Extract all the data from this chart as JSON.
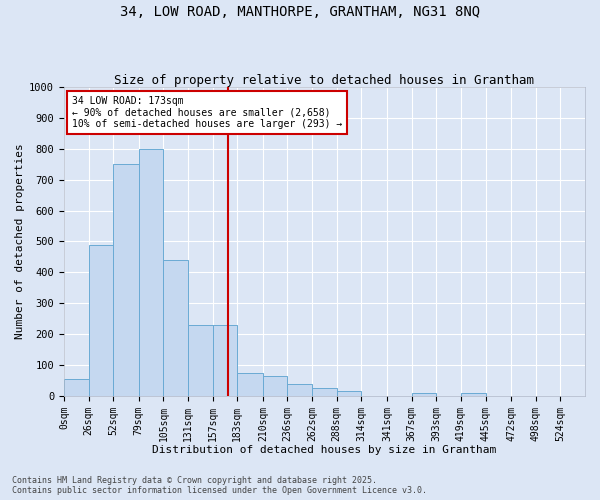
{
  "title1": "34, LOW ROAD, MANTHORPE, GRANTHAM, NG31 8NQ",
  "title2": "Size of property relative to detached houses in Grantham",
  "xlabel": "Distribution of detached houses by size in Grantham",
  "ylabel": "Number of detached properties",
  "bin_labels": [
    "0sqm",
    "26sqm",
    "52sqm",
    "79sqm",
    "105sqm",
    "131sqm",
    "157sqm",
    "183sqm",
    "210sqm",
    "236sqm",
    "262sqm",
    "288sqm",
    "314sqm",
    "341sqm",
    "367sqm",
    "393sqm",
    "419sqm",
    "445sqm",
    "472sqm",
    "498sqm",
    "524sqm"
  ],
  "bar_values": [
    55,
    490,
    750,
    800,
    440,
    230,
    230,
    75,
    65,
    40,
    25,
    15,
    0,
    0,
    10,
    0,
    8,
    0,
    0,
    0,
    0
  ],
  "bin_edges": [
    0,
    26,
    52,
    79,
    105,
    131,
    157,
    183,
    210,
    236,
    262,
    288,
    314,
    341,
    367,
    393,
    419,
    445,
    472,
    498,
    524
  ],
  "bar_color": "#c5d8f0",
  "bar_edge_color": "#6aaad4",
  "vline_x": 173,
  "vline_color": "#cc0000",
  "annotation_box_text": "34 LOW ROAD: 173sqm\n← 90% of detached houses are smaller (2,658)\n10% of semi-detached houses are larger (293) →",
  "ylim": [
    0,
    1000
  ],
  "yticks": [
    0,
    100,
    200,
    300,
    400,
    500,
    600,
    700,
    800,
    900,
    1000
  ],
  "background_color": "#dce6f5",
  "plot_bg_color": "#dce6f5",
  "grid_color": "#ffffff",
  "footer1": "Contains HM Land Registry data © Crown copyright and database right 2025.",
  "footer2": "Contains public sector information licensed under the Open Government Licence v3.0.",
  "title_fontsize": 10,
  "subtitle_fontsize": 9,
  "axis_label_fontsize": 8,
  "tick_fontsize": 7
}
